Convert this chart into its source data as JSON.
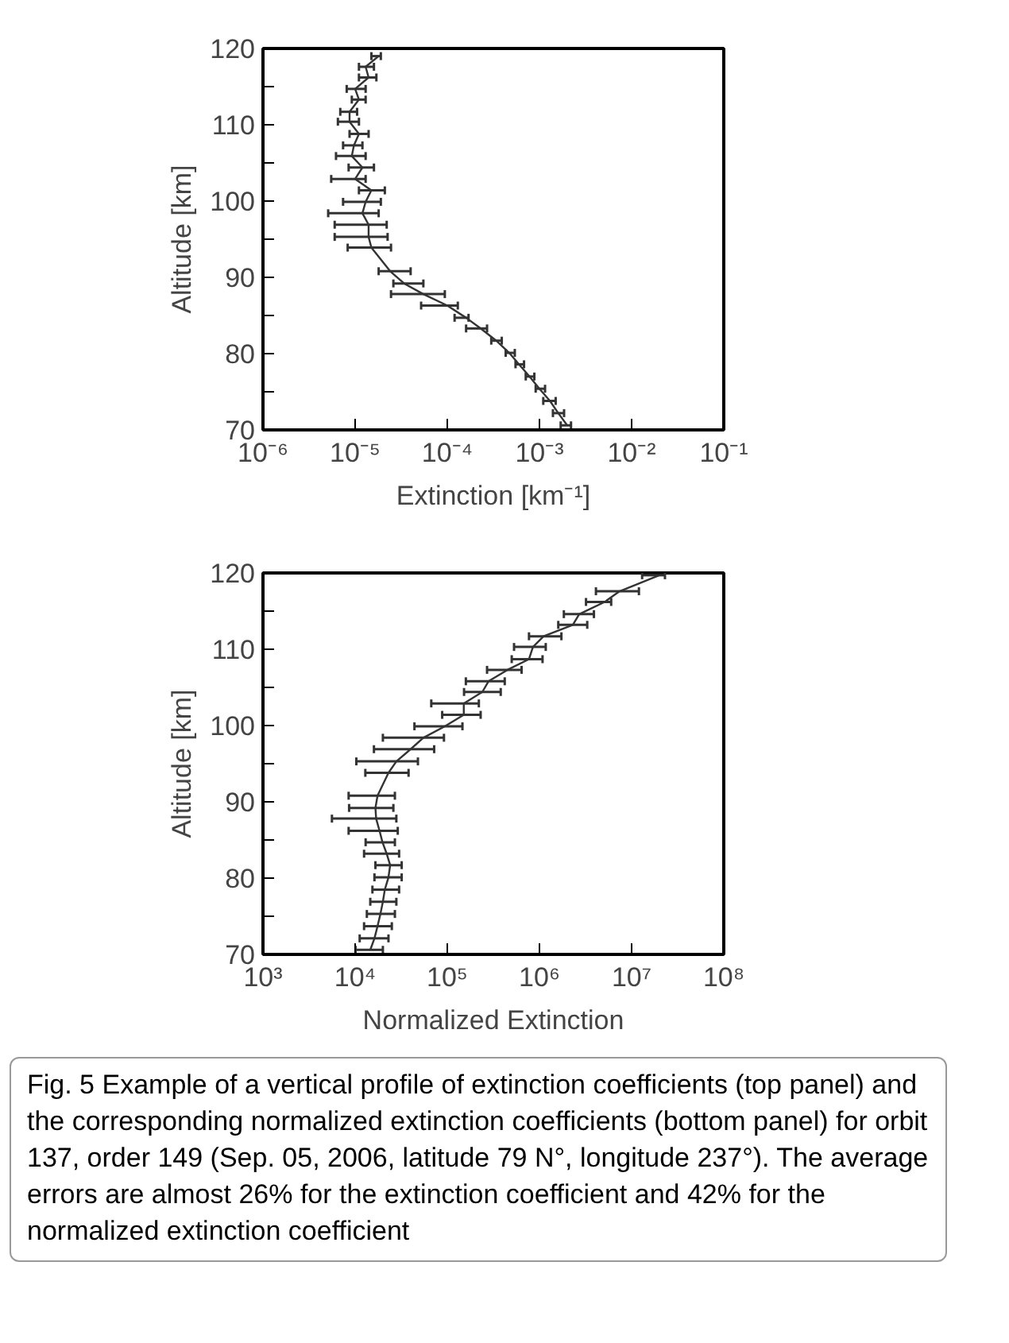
{
  "chart_data": [
    {
      "type": "line",
      "xlabel": "Extinction [km⁻¹]",
      "ylabel": "Altitude [km]",
      "log": "x",
      "grid": false,
      "marker": "none",
      "line_style": "solid",
      "xlim": [
        1e-06,
        0.1
      ],
      "ylim": [
        70,
        120
      ],
      "xticks": [
        {
          "value": 1e-06,
          "label": "10⁻⁶"
        },
        {
          "value": 1e-05,
          "label": "10⁻⁵"
        },
        {
          "value": 0.0001,
          "label": "10⁻⁴"
        },
        {
          "value": 0.001,
          "label": "10⁻³"
        },
        {
          "value": 0.01,
          "label": "10⁻²"
        },
        {
          "value": 0.1,
          "label": "10⁻¹"
        }
      ],
      "yticks": [
        70,
        {
          "value": 75,
          "label": null
        },
        80,
        {
          "value": 85,
          "label": null
        },
        90,
        {
          "value": 95,
          "label": null
        },
        100,
        {
          "value": 105,
          "label": null
        },
        110,
        {
          "value": 115,
          "label": null
        },
        120
      ],
      "series": [
        {
          "color": "#333333",
          "x": [
            0.002,
            0.0016,
            0.0013,
            0.001,
            0.00078,
            0.0006,
            0.00047,
            0.00034,
            0.00023,
            0.00016,
            0.0001,
            5.5e-05,
            3.4e-05,
            2.4e-05,
            1.5e-05,
            1.4e-05,
            1.4e-05,
            1.2e-05,
            1.3e-05,
            1.5e-05,
            1e-05,
            1.2e-05,
            9.2e-06,
            9.7e-06,
            1.1e-05,
            8.7e-06,
            8.7e-06,
            1.1e-05,
            1e-05,
            1.4e-05,
            1.3e-05,
            1.8e-05
          ],
          "values": [
            70.6,
            72.2,
            73.8,
            75.4,
            77.0,
            78.6,
            80.1,
            81.7,
            83.3,
            84.7,
            86.3,
            87.8,
            89.2,
            90.8,
            93.9,
            95.3,
            96.9,
            98.4,
            99.9,
            101.4,
            102.9,
            104.4,
            105.9,
            107.3,
            108.8,
            110.4,
            111.7,
            113.3,
            114.7,
            116.2,
            117.6,
            119.0
          ],
          "xerrors": [
            [
              0.0017,
              0.0022
            ],
            [
              0.0014,
              0.00185
            ],
            [
              0.0011,
              0.0015
            ],
            [
              0.00091,
              0.00115
            ],
            [
              0.00071,
              0.00088
            ],
            [
              0.00055,
              0.00068
            ],
            [
              0.00043,
              0.00054
            ],
            [
              0.0003,
              0.00039
            ],
            [
              0.00016,
              0.00027
            ],
            [
              0.00012,
              0.00017
            ],
            [
              5.2e-05,
              0.00013
            ],
            [
              2.45e-05,
              9.4e-05
            ],
            [
              2.6e-05,
              5.5e-05
            ],
            [
              1.8e-05,
              4e-05
            ],
            [
              8.3e-06,
              2.45e-05
            ],
            [
              6e-06,
              2.25e-05
            ],
            [
              6e-06,
              2.2e-05
            ],
            [
              5.1e-06,
              1.8e-05
            ],
            [
              7.4e-06,
              1.9e-05
            ],
            [
              1.1e-05,
              2.1e-05
            ],
            [
              5.5e-06,
              1.3e-05
            ],
            [
              8.5e-06,
              1.6e-05
            ],
            [
              6.2e-06,
              1.3e-05
            ],
            [
              7.4e-06,
              1.2e-05
            ],
            [
              8.7e-06,
              1.4e-05
            ],
            [
              6.5e-06,
              1.1e-05
            ],
            [
              6.9e-06,
              1.05e-05
            ],
            [
              9.2e-06,
              1.3e-05
            ],
            [
              8.1e-06,
              1.3e-05
            ],
            [
              1.1e-05,
              1.7e-05
            ],
            [
              1.1e-05,
              1.6e-05
            ],
            [
              1.5e-05,
              1.9e-05
            ]
          ]
        }
      ]
    },
    {
      "type": "line",
      "xlabel": "Normalized Extinction",
      "ylabel": "Altitude [km]",
      "log": "x",
      "grid": false,
      "marker": "none",
      "line_style": "solid",
      "xlim": [
        1000.0,
        100000000.0
      ],
      "ylim": [
        70,
        120
      ],
      "xticks": [
        {
          "value": 1000.0,
          "label": "10³"
        },
        {
          "value": 10000.0,
          "label": "10⁴"
        },
        {
          "value": 100000.0,
          "label": "10⁵"
        },
        {
          "value": 1000000.0,
          "label": "10⁶"
        },
        {
          "value": 10000000.0,
          "label": "10⁷"
        },
        {
          "value": 100000000.0,
          "label": "10⁸"
        }
      ],
      "yticks": [
        70,
        {
          "value": 75,
          "label": null
        },
        80,
        {
          "value": 85,
          "label": null
        },
        90,
        {
          "value": 95,
          "label": null
        },
        100,
        {
          "value": 105,
          "label": null
        },
        110,
        {
          "value": 115,
          "label": null
        },
        120
      ],
      "series": [
        {
          "color": "#333333",
          "x": [
            14600.0,
            16200.0,
            17500.0,
            18800.0,
            20000.0,
            21000.0,
            23000.0,
            24000.0,
            22000.0,
            19800.0,
            18400.0,
            16900.0,
            16600.0,
            17500.0,
            23000.0,
            28000.0,
            40000.0,
            55000.0,
            94000.0,
            151000.0,
            151000.0,
            240000.0,
            280000.0,
            450000.0,
            770000.0,
            850000.0,
            1110000.0,
            2300000.0,
            2700000.0,
            5100000.0,
            7400000.0,
            20000000.0
          ],
          "values": [
            70.6,
            72.1,
            73.7,
            75.3,
            76.9,
            78.5,
            80.1,
            81.7,
            83.2,
            84.7,
            86.2,
            87.8,
            89.2,
            90.8,
            93.8,
            95.3,
            96.9,
            98.4,
            99.9,
            101.4,
            102.9,
            104.4,
            105.8,
            107.3,
            108.7,
            110.3,
            111.7,
            113.2,
            114.6,
            116.2,
            117.6,
            119.7
          ],
          "xerrors": [
            [
              10100.0,
              20000.0
            ],
            [
              11200.0,
              23000.0
            ],
            [
              12500.0,
              25000.0
            ],
            [
              13400.0,
              27000.0
            ],
            [
              14600.0,
              28000.0
            ],
            [
              15400.0,
              30000.0
            ],
            [
              16200.0,
              32000.0
            ],
            [
              16600.0,
              32000.0
            ],
            [
              12500.0,
              30000.0
            ],
            [
              13000.0,
              27000.0
            ],
            [
              8500.0,
              29000.0
            ],
            [
              5600.0,
              28000.0
            ],
            [
              8600.0,
              26000.0
            ],
            [
              8500.0,
              27000.0
            ],
            [
              12900.0,
              38000.0
            ],
            [
              10300.0,
              48000.0
            ],
            [
              16000.0,
              72000.0
            ],
            [
              20000.0,
              92000.0
            ],
            [
              44000.0,
              146000.0
            ],
            [
              88000.0,
              230000.0
            ],
            [
              67000.0,
              220000.0
            ],
            [
              152000.0,
              380000.0
            ],
            [
              159000.0,
              420000.0
            ],
            [
              270000.0,
              640000.0
            ],
            [
              500000.0,
              1080000.0
            ],
            [
              530000.0,
              1170000.0
            ],
            [
              770000.0,
              1730000.0
            ],
            [
              1600000.0,
              3300000.0
            ],
            [
              1840000.0,
              3900000.0
            ],
            [
              3200000.0,
              6000000.0
            ],
            [
              4100000.0,
              12000000.0
            ],
            [
              13000000.0,
              23000000.0
            ]
          ]
        }
      ],
      "annotations": [
        "Fig. 5  Example of a vertical profile of extinction coefficients (top panel) and the corresponding normalized extinction coefficients (bottom panel) for orbit 137, order 149 (Sep. 05, 2006, latitude 79 N°, longitude 237°). The average errors are almost 26% for the extinction coefficient and 42% for the normalized extinction coefficient"
      ]
    }
  ]
}
